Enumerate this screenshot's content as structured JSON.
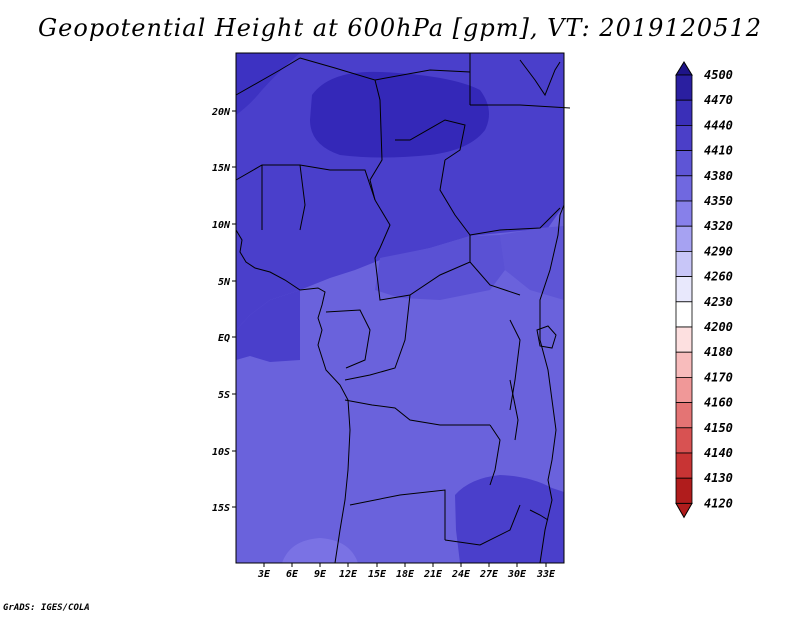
{
  "title": "Geopotential Height at 600hPa [gpm], VT: 2019120512",
  "credit": "GrADS: IGES/COLA",
  "map": {
    "lat_labels": [
      "20N",
      "15N",
      "10N",
      "5N",
      "EQ",
      "5S",
      "10S",
      "15S"
    ],
    "lon_labels": [
      "3E",
      "6E",
      "9E",
      "12E",
      "15E",
      "18E",
      "21E",
      "24E",
      "27E",
      "30E",
      "33E"
    ]
  },
  "colorbar": {
    "levels": [
      "4500",
      "4470",
      "4440",
      "4410",
      "4380",
      "4350",
      "4320",
      "4290",
      "4260",
      "4230",
      "4200",
      "4180",
      "4170",
      "4160",
      "4150",
      "4140",
      "4130",
      "4120"
    ],
    "colors": [
      "#1e1488",
      "#2a1fa0",
      "#3a2fb8",
      "#4b3fc8",
      "#5e55d6",
      "#7068e0",
      "#8780ea",
      "#a6a2f2",
      "#c8c6f8",
      "#e8e8fc",
      "#ffffff",
      "#fde0e0",
      "#f8bcbc",
      "#f09898",
      "#e47474",
      "#d85252",
      "#c83434",
      "#b01c1c"
    ]
  },
  "fill_colors": {
    "dark": "#3f32c4",
    "darkest": "#3126b4",
    "medium": "#5a51d4",
    "light": "#6c64dc",
    "lightest": "#7a72e4"
  }
}
